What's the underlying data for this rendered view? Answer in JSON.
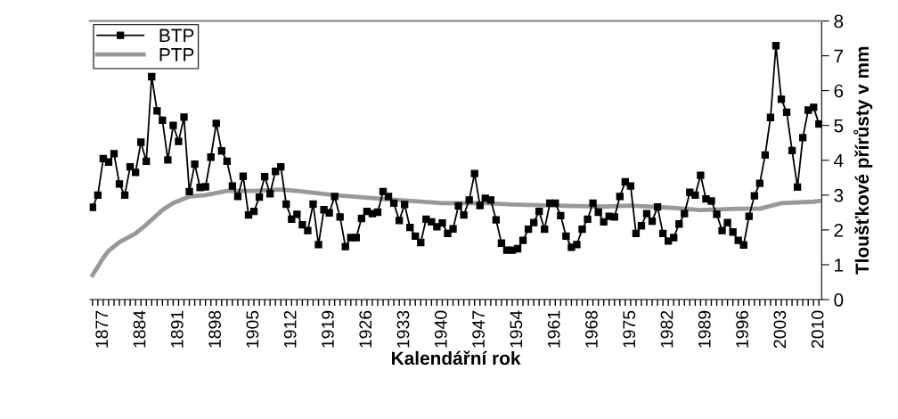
{
  "chart_data": {
    "type": "line",
    "xlabel": "Kalendářní rok",
    "ylabel": "Tloušťkové přírůsty v mm",
    "xlim": [
      1874.5,
      2010.5
    ],
    "xticks": [
      {
        "value": 1875,
        "label": null
      },
      {
        "value": 1876,
        "label": null
      },
      1877,
      {
        "value": 1878,
        "label": null
      },
      {
        "value": 1879,
        "label": null
      },
      {
        "value": 1880,
        "label": null
      },
      {
        "value": 1881,
        "label": null
      },
      {
        "value": 1882,
        "label": null
      },
      {
        "value": 1883,
        "label": null
      },
      1884,
      {
        "value": 1885,
        "label": null
      },
      {
        "value": 1886,
        "label": null
      },
      {
        "value": 1887,
        "label": null
      },
      {
        "value": 1888,
        "label": null
      },
      {
        "value": 1889,
        "label": null
      },
      {
        "value": 1890,
        "label": null
      },
      1891,
      {
        "value": 1892,
        "label": null
      },
      {
        "value": 1893,
        "label": null
      },
      {
        "value": 1894,
        "label": null
      },
      {
        "value": 1895,
        "label": null
      },
      {
        "value": 1896,
        "label": null
      },
      {
        "value": 1897,
        "label": null
      },
      1898,
      {
        "value": 1899,
        "label": null
      },
      {
        "value": 1900,
        "label": null
      },
      {
        "value": 1901,
        "label": null
      },
      {
        "value": 1902,
        "label": null
      },
      {
        "value": 1903,
        "label": null
      },
      {
        "value": 1904,
        "label": null
      },
      1905,
      {
        "value": 1906,
        "label": null
      },
      {
        "value": 1907,
        "label": null
      },
      {
        "value": 1908,
        "label": null
      },
      {
        "value": 1909,
        "label": null
      },
      {
        "value": 1910,
        "label": null
      },
      {
        "value": 1911,
        "label": null
      },
      1912,
      {
        "value": 1913,
        "label": null
      },
      {
        "value": 1914,
        "label": null
      },
      {
        "value": 1915,
        "label": null
      },
      {
        "value": 1916,
        "label": null
      },
      {
        "value": 1917,
        "label": null
      },
      {
        "value": 1918,
        "label": null
      },
      1919,
      {
        "value": 1920,
        "label": null
      },
      {
        "value": 1921,
        "label": null
      },
      {
        "value": 1922,
        "label": null
      },
      {
        "value": 1923,
        "label": null
      },
      {
        "value": 1924,
        "label": null
      },
      {
        "value": 1925,
        "label": null
      },
      1926,
      {
        "value": 1927,
        "label": null
      },
      {
        "value": 1928,
        "label": null
      },
      {
        "value": 1929,
        "label": null
      },
      {
        "value": 1930,
        "label": null
      },
      {
        "value": 1931,
        "label": null
      },
      {
        "value": 1932,
        "label": null
      },
      1933,
      {
        "value": 1934,
        "label": null
      },
      {
        "value": 1935,
        "label": null
      },
      {
        "value": 1936,
        "label": null
      },
      {
        "value": 1937,
        "label": null
      },
      {
        "value": 1938,
        "label": null
      },
      {
        "value": 1939,
        "label": null
      },
      1940,
      {
        "value": 1941,
        "label": null
      },
      {
        "value": 1942,
        "label": null
      },
      {
        "value": 1943,
        "label": null
      },
      {
        "value": 1944,
        "label": null
      },
      {
        "value": 1945,
        "label": null
      },
      {
        "value": 1946,
        "label": null
      },
      1947,
      {
        "value": 1948,
        "label": null
      },
      {
        "value": 1949,
        "label": null
      },
      {
        "value": 1950,
        "label": null
      },
      {
        "value": 1951,
        "label": null
      },
      {
        "value": 1952,
        "label": null
      },
      {
        "value": 1953,
        "label": null
      },
      1954,
      {
        "value": 1955,
        "label": null
      },
      {
        "value": 1956,
        "label": null
      },
      {
        "value": 1957,
        "label": null
      },
      {
        "value": 1958,
        "label": null
      },
      {
        "value": 1959,
        "label": null
      },
      {
        "value": 1960,
        "label": null
      },
      1961,
      {
        "value": 1962,
        "label": null
      },
      {
        "value": 1963,
        "label": null
      },
      {
        "value": 1964,
        "label": null
      },
      {
        "value": 1965,
        "label": null
      },
      {
        "value": 1966,
        "label": null
      },
      {
        "value": 1967,
        "label": null
      },
      1968,
      {
        "value": 1969,
        "label": null
      },
      {
        "value": 1970,
        "label": null
      },
      {
        "value": 1971,
        "label": null
      },
      {
        "value": 1972,
        "label": null
      },
      {
        "value": 1973,
        "label": null
      },
      {
        "value": 1974,
        "label": null
      },
      1975,
      {
        "value": 1976,
        "label": null
      },
      {
        "value": 1977,
        "label": null
      },
      {
        "value": 1978,
        "label": null
      },
      {
        "value": 1979,
        "label": null
      },
      {
        "value": 1980,
        "label": null
      },
      {
        "value": 1981,
        "label": null
      },
      1982,
      {
        "value": 1983,
        "label": null
      },
      {
        "value": 1984,
        "label": null
      },
      {
        "value": 1985,
        "label": null
      },
      {
        "value": 1986,
        "label": null
      },
      {
        "value": 1987,
        "label": null
      },
      {
        "value": 1988,
        "label": null
      },
      1989,
      {
        "value": 1990,
        "label": null
      },
      {
        "value": 1991,
        "label": null
      },
      {
        "value": 1992,
        "label": null
      },
      {
        "value": 1993,
        "label": null
      },
      {
        "value": 1994,
        "label": null
      },
      {
        "value": 1995,
        "label": null
      },
      1996,
      {
        "value": 1997,
        "label": null
      },
      {
        "value": 1998,
        "label": null
      },
      {
        "value": 1999,
        "label": null
      },
      {
        "value": 2000,
        "label": null
      },
      {
        "value": 2001,
        "label": null
      },
      {
        "value": 2002,
        "label": null
      },
      2003,
      {
        "value": 2004,
        "label": null
      },
      {
        "value": 2005,
        "label": null
      },
      {
        "value": 2006,
        "label": null
      },
      {
        "value": 2007,
        "label": null
      },
      {
        "value": 2008,
        "label": null
      },
      {
        "value": 2009,
        "label": null
      },
      2010
    ],
    "ylim": [
      0,
      8
    ],
    "yticks": [
      0,
      1,
      2,
      3,
      4,
      5,
      6,
      7,
      8
    ],
    "grid": false,
    "legend": "top left",
    "series": [
      {
        "name": "BTP",
        "color": "#000000",
        "marker": "square",
        "line_style": "solid",
        "x": [
          1875,
          1876,
          1877,
          1878,
          1879,
          1880,
          1881,
          1882,
          1883,
          1884,
          1885,
          1886,
          1887,
          1888,
          1889,
          1890,
          1891,
          1892,
          1893,
          1894,
          1895,
          1896,
          1897,
          1898,
          1899,
          1900,
          1901,
          1902,
          1903,
          1904,
          1905,
          1906,
          1907,
          1908,
          1909,
          1910,
          1911,
          1912,
          1913,
          1914,
          1915,
          1916,
          1917,
          1918,
          1919,
          1920,
          1921,
          1922,
          1923,
          1924,
          1925,
          1926,
          1927,
          1928,
          1929,
          1930,
          1931,
          1932,
          1933,
          1934,
          1935,
          1936,
          1937,
          1938,
          1939,
          1940,
          1941,
          1942,
          1943,
          1944,
          1945,
          1946,
          1947,
          1948,
          1949,
          1950,
          1951,
          1952,
          1953,
          1954,
          1955,
          1956,
          1957,
          1958,
          1959,
          1960,
          1961,
          1962,
          1963,
          1964,
          1965,
          1966,
          1967,
          1968,
          1969,
          1970,
          1971,
          1972,
          1973,
          1974,
          1975,
          1976,
          1977,
          1978,
          1979,
          1980,
          1981,
          1982,
          1983,
          1984,
          1985,
          1986,
          1987,
          1988,
          1989,
          1990,
          1991,
          1992,
          1993,
          1994,
          1995,
          1996,
          1997,
          1998,
          1999,
          2000,
          2001,
          2002,
          2003,
          2004,
          2005,
          2006,
          2007,
          2008,
          2009,
          2010
        ],
        "values": [
          2.65,
          3.0,
          4.05,
          3.95,
          4.19,
          3.32,
          3.0,
          3.81,
          3.65,
          4.52,
          3.97,
          6.4,
          5.42,
          5.15,
          4.01,
          5.0,
          4.54,
          5.24,
          3.1,
          3.89,
          3.22,
          3.24,
          4.09,
          5.06,
          4.27,
          3.97,
          3.26,
          2.96,
          3.54,
          2.43,
          2.53,
          2.94,
          3.53,
          3.04,
          3.68,
          3.81,
          2.74,
          2.31,
          2.45,
          2.15,
          1.98,
          2.74,
          1.58,
          2.58,
          2.49,
          2.96,
          2.37,
          1.52,
          1.78,
          1.78,
          2.33,
          2.53,
          2.47,
          2.51,
          3.1,
          2.96,
          2.77,
          2.27,
          2.73,
          2.07,
          1.82,
          1.64,
          2.31,
          2.23,
          2.09,
          2.2,
          1.9,
          2.03,
          2.69,
          2.43,
          2.86,
          3.62,
          2.7,
          2.91,
          2.86,
          2.29,
          1.62,
          1.42,
          1.42,
          1.46,
          1.7,
          2.02,
          2.21,
          2.53,
          2.02,
          2.77,
          2.77,
          2.41,
          1.82,
          1.5,
          1.58,
          2.02,
          2.31,
          2.77,
          2.51,
          2.23,
          2.39,
          2.37,
          2.96,
          3.38,
          3.26,
          1.9,
          2.12,
          2.47,
          2.25,
          2.66,
          1.9,
          1.68,
          1.78,
          2.17,
          2.47,
          3.08,
          3.0,
          3.57,
          2.89,
          2.83,
          2.45,
          1.98,
          2.21,
          1.94,
          1.7,
          1.57,
          2.39,
          2.98,
          3.34,
          4.15,
          5.23,
          7.29,
          5.75,
          5.38,
          4.28,
          3.23,
          4.65,
          5.44,
          5.52,
          5.04
        ]
      },
      {
        "name": "PTP",
        "color": "#999999",
        "marker": "none",
        "line_style": "solid",
        "x": [
          1875,
          1876,
          1877,
          1878,
          1880,
          1883,
          1885,
          1888,
          1890,
          1893,
          1896,
          1900,
          1905,
          1910,
          1913,
          1920,
          1929,
          1940,
          1948,
          1953,
          1961,
          1970,
          1975,
          1983,
          1988,
          1995,
          1999,
          2003,
          2009,
          2010
        ],
        "values": [
          0.7,
          0.95,
          1.2,
          1.4,
          1.65,
          1.9,
          2.15,
          2.57,
          2.77,
          2.96,
          3.0,
          3.12,
          3.12,
          3.16,
          3.12,
          3.0,
          2.89,
          2.77,
          2.77,
          2.73,
          2.7,
          2.67,
          2.7,
          2.63,
          2.57,
          2.61,
          2.61,
          2.77,
          2.81,
          2.83
        ]
      }
    ]
  }
}
